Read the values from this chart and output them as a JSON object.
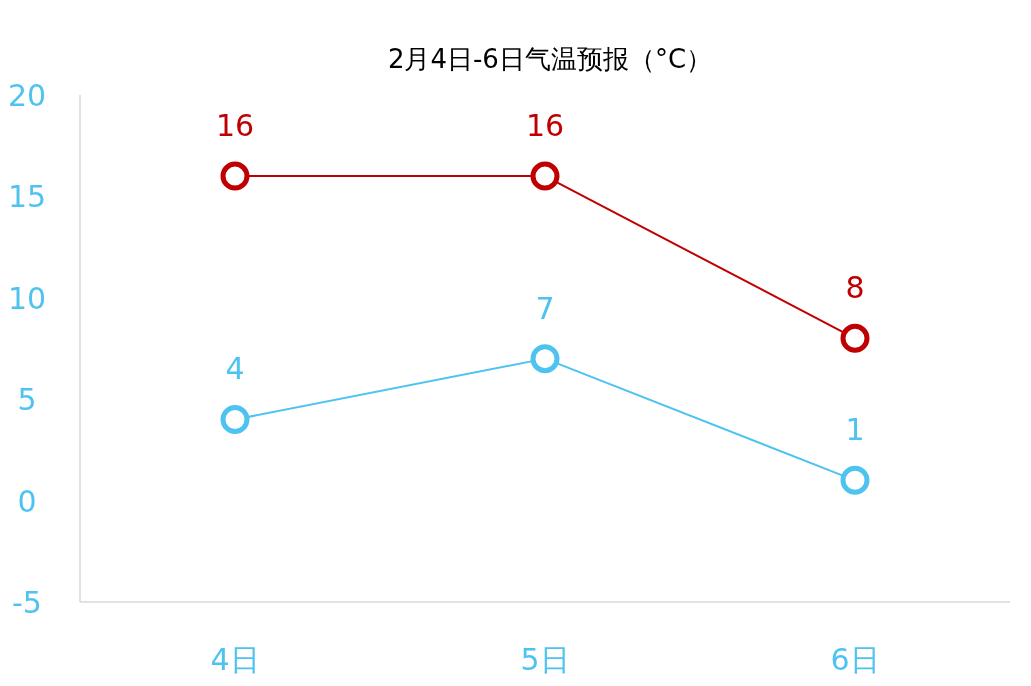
{
  "chart_data": {
    "type": "line",
    "title": "2月4日-6日气温预报（°C）",
    "categories": [
      "4日",
      "5日",
      "6日"
    ],
    "series": [
      {
        "color": "#c00000",
        "values": [
          16,
          16,
          8
        ]
      },
      {
        "color": "#4fc3f0",
        "values": [
          4,
          7,
          1
        ]
      }
    ],
    "ylim": [
      -5,
      20
    ],
    "yticks": [
      -5,
      0,
      5,
      10,
      15,
      20
    ],
    "grid": false,
    "marker": "circle",
    "line_style": "solid",
    "data_labels": true
  }
}
